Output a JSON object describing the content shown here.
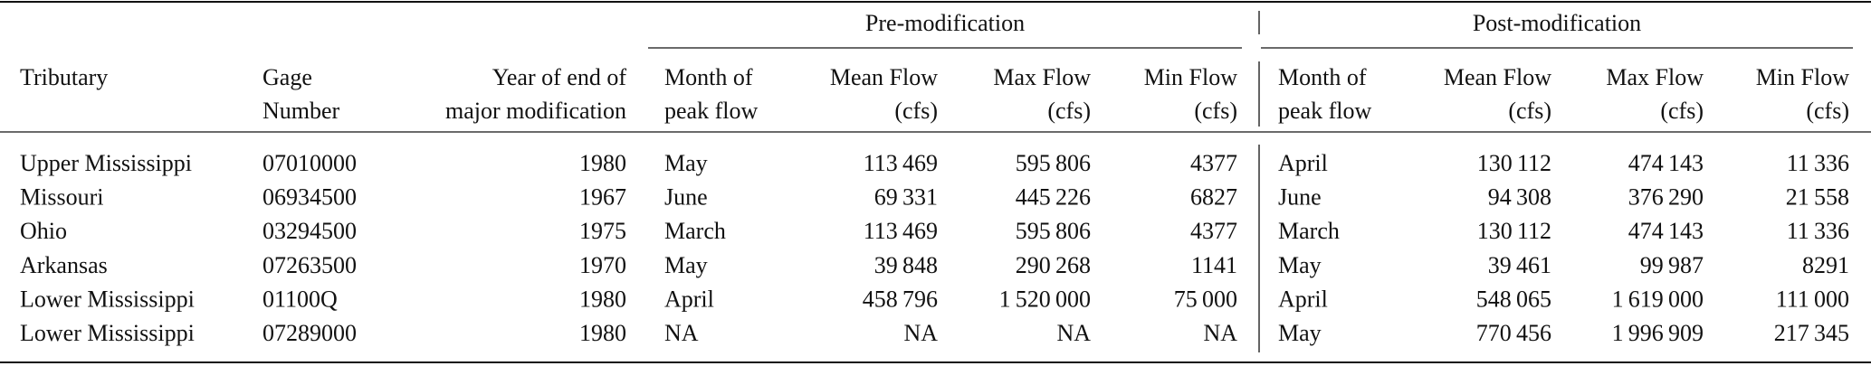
{
  "table": {
    "groups": [
      "Pre-modification",
      "Post-modification"
    ],
    "columns": [
      [
        "Tributary"
      ],
      [
        "Gage",
        "Number"
      ],
      [
        "Year of end of",
        "major modification"
      ],
      [
        "Month of",
        "peak flow"
      ],
      [
        "Mean Flow",
        "(cfs)"
      ],
      [
        "Max Flow",
        "(cfs)"
      ],
      [
        "Min Flow",
        "(cfs)"
      ],
      [
        "Month of",
        "peak flow"
      ],
      [
        "Mean Flow",
        "(cfs)"
      ],
      [
        "Max Flow",
        "(cfs)"
      ],
      [
        "Min Flow",
        "(cfs)"
      ]
    ],
    "rows": [
      [
        "Upper Mississippi",
        "07010000",
        "1980",
        "May",
        "113 469",
        "595 806",
        "4377",
        "April",
        "130 112",
        "474 143",
        "11 336"
      ],
      [
        "Missouri",
        "06934500",
        "1967",
        "June",
        "69 331",
        "445 226",
        "6827",
        "June",
        "94 308",
        "376 290",
        "21 558"
      ],
      [
        "Ohio",
        "03294500",
        "1975",
        "March",
        "113 469",
        "595 806",
        "4377",
        "March",
        "130 112",
        "474 143",
        "11 336"
      ],
      [
        "Arkansas",
        "07263500",
        "1970",
        "May",
        "39 848",
        "290 268",
        "1141",
        "May",
        "39 461",
        "99 987",
        "8291"
      ],
      [
        "Lower Mississippi",
        "01100Q",
        "1980",
        "April",
        "458 796",
        "1 520 000",
        "75 000",
        "April",
        "548 065",
        "1 619 000",
        "111 000"
      ],
      [
        "Lower Mississippi",
        "07289000",
        "1980",
        "NA",
        "NA",
        "NA",
        "NA",
        "May",
        "770 456",
        "1 996 909",
        "217 345"
      ]
    ]
  }
}
